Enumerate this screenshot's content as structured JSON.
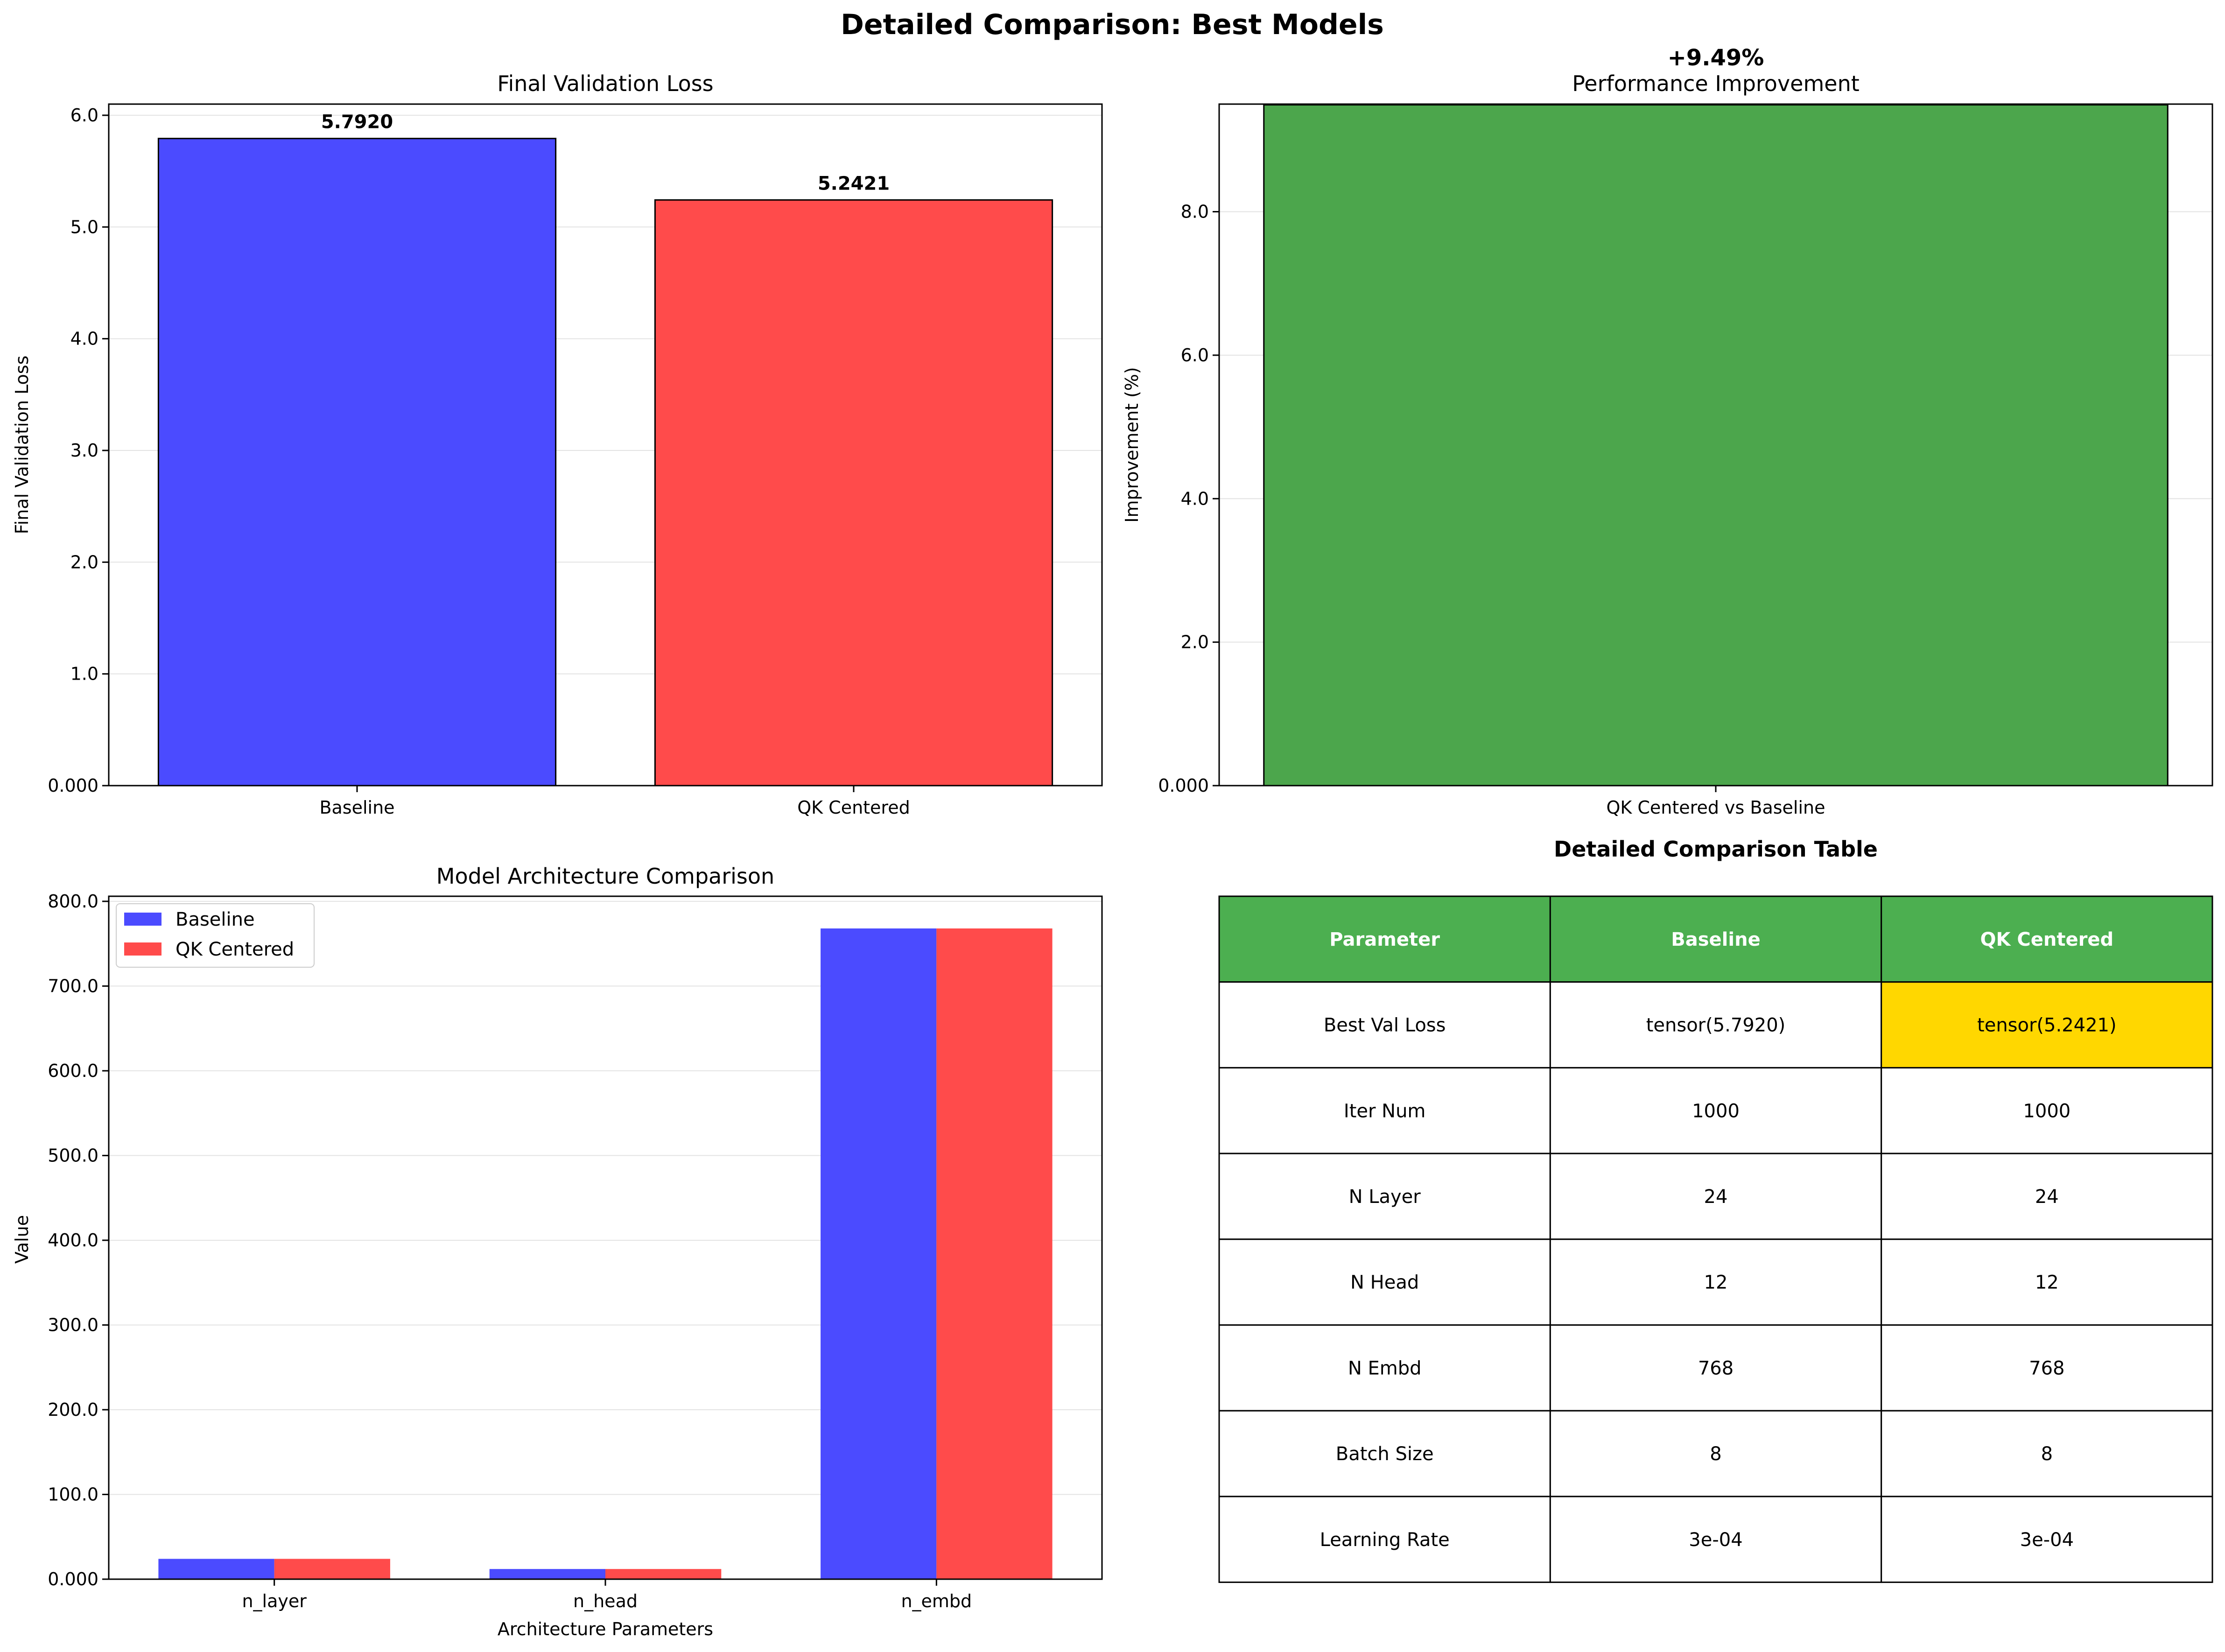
{
  "figure": {
    "title": "Detailed Comparison: Best Models"
  },
  "chart_data": [
    {
      "type": "bar",
      "title": "Final Validation Loss",
      "xlabel": "",
      "ylabel": "Final Validation Loss",
      "categories": [
        "Baseline",
        "QK Centered"
      ],
      "values": [
        5.792,
        5.2421
      ],
      "data_labels": [
        "5.7920",
        "5.2421"
      ],
      "colors": [
        "#4b4bff",
        "#ff4b4b"
      ],
      "ylim": [
        0,
        6.1
      ],
      "yticks": [
        0,
        1,
        2,
        3,
        4,
        5,
        6
      ],
      "yticklabels": [
        "0.000",
        "1.0",
        "2.0",
        "3.0",
        "4.0",
        "5.0",
        "6.0"
      ],
      "grid": "y"
    },
    {
      "type": "bar",
      "title": "Performance Improvement",
      "annotation": "+9.49%",
      "xlabel": "",
      "ylabel": "Improvement (%)",
      "categories": [
        "QK Centered vs Baseline"
      ],
      "values": [
        9.49
      ],
      "colors": [
        "#4ca64c"
      ],
      "ylim": [
        0,
        9.5
      ],
      "yticks": [
        0,
        2,
        4,
        6,
        8
      ],
      "yticklabels": [
        "0.000",
        "2.0",
        "4.0",
        "6.0",
        "8.0"
      ],
      "grid": "y"
    },
    {
      "type": "bar",
      "title": "Model Architecture Comparison",
      "xlabel": "Architecture Parameters",
      "ylabel": "Value",
      "categories": [
        "n_layer",
        "n_head",
        "n_embd"
      ],
      "series": [
        {
          "name": "Baseline",
          "values": [
            24,
            12,
            768
          ],
          "color": "#4b4bff"
        },
        {
          "name": "QK Centered",
          "values": [
            24,
            12,
            768
          ],
          "color": "#ff4b4b"
        }
      ],
      "ylim": [
        0,
        806
      ],
      "yticks": [
        0,
        100,
        200,
        300,
        400,
        500,
        600,
        700,
        800
      ],
      "yticklabels": [
        "0.000",
        "100.0",
        "200.0",
        "300.0",
        "400.0",
        "500.0",
        "600.0",
        "700.0",
        "800.0"
      ],
      "legend": "top-left",
      "grid": "y"
    },
    {
      "type": "table",
      "title": "Detailed Comparison Table",
      "header": [
        "Parameter",
        "Baseline",
        "QK Centered"
      ],
      "header_color": "#4caf50",
      "highlight_color": "#ffd700",
      "rows": [
        [
          "Best Val Loss",
          "tensor(5.7920)",
          "tensor(5.2421)"
        ],
        [
          "Iter Num",
          "1000",
          "1000"
        ],
        [
          "N Layer",
          "24",
          "24"
        ],
        [
          "N Head",
          "12",
          "12"
        ],
        [
          "N Embd",
          "768",
          "768"
        ],
        [
          "Batch Size",
          "8",
          "8"
        ],
        [
          "Learning Rate",
          "3e-04",
          "3e-04"
        ]
      ]
    }
  ]
}
